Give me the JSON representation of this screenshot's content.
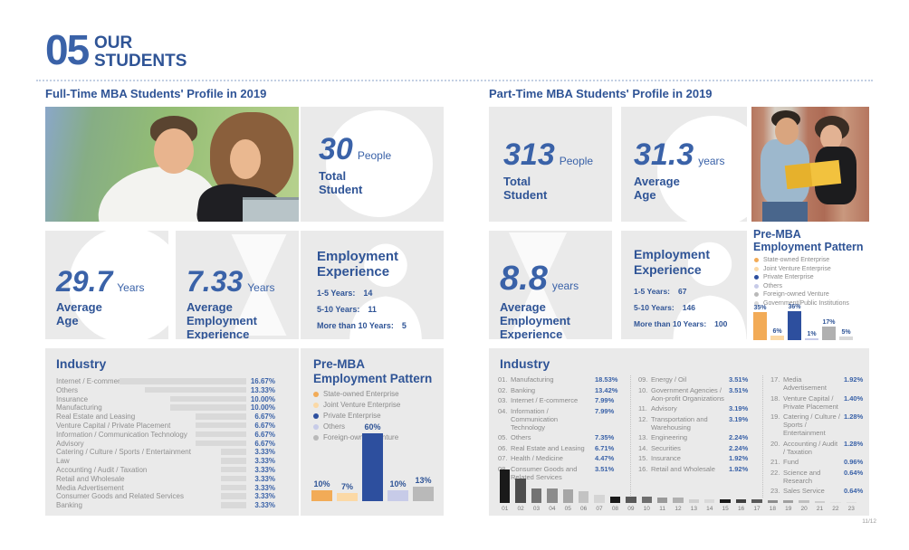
{
  "page": {
    "number": "05",
    "title_top": "OUR",
    "title_bottom": "STUDENTS",
    "page_indicator": "11/12",
    "accent_blue": "#2f5496",
    "number_blue": "#3a62a8",
    "card_gray": "#eaeaea"
  },
  "fulltime": {
    "section_title": "Full-Time MBA Students' Profile in 2019",
    "total_student": {
      "value": "30",
      "unit": "People",
      "label_line1": "Total",
      "label_line2": "Student"
    },
    "average_age": {
      "value": "29.7",
      "unit": "Years",
      "label_line1": "Average",
      "label_line2": "Age"
    },
    "average_employment": {
      "value": "7.33",
      "unit": "Years",
      "label_line1": "Average Employment",
      "label_line2": "Experience"
    },
    "employment_experience": {
      "title_line1": "Employment",
      "title_line2": "Experience",
      "rows": [
        {
          "label": "1-5 Years:",
          "value": "14"
        },
        {
          "label": "5-10 Years:",
          "value": "11"
        },
        {
          "label": "More than 10 Years:",
          "value": "5"
        }
      ]
    },
    "industry": {
      "title": "Industry",
      "items": [
        {
          "label": "Internet / E-commerce",
          "value": 16.67,
          "pct": "16.67%"
        },
        {
          "label": "Others",
          "value": 13.33,
          "pct": "13.33%"
        },
        {
          "label": "Insurance",
          "value": 10.0,
          "pct": "10.00%"
        },
        {
          "label": "Manufacturing",
          "value": 10.0,
          "pct": "10.00%"
        },
        {
          "label": "Real Estate and Leasing",
          "value": 6.67,
          "pct": "6.67%"
        },
        {
          "label": "Venture Capital / Private Placement",
          "value": 6.67,
          "pct": "6.67%"
        },
        {
          "label": "Information / Communication Technology",
          "value": 6.67,
          "pct": "6.67%"
        },
        {
          "label": "Advisory",
          "value": 6.67,
          "pct": "6.67%"
        },
        {
          "label": "Catering / Culture / Sports / Entertainment",
          "value": 3.33,
          "pct": "3.33%"
        },
        {
          "label": "Law",
          "value": 3.33,
          "pct": "3.33%"
        },
        {
          "label": "Accounting / Audit / Taxation",
          "value": 3.33,
          "pct": "3.33%"
        },
        {
          "label": "Retail and Wholesale",
          "value": 3.33,
          "pct": "3.33%"
        },
        {
          "label": "Media Advertisement",
          "value": 3.33,
          "pct": "3.33%"
        },
        {
          "label": "Consumer Goods and Related Services",
          "value": 3.33,
          "pct": "3.33%"
        },
        {
          "label": "Banking",
          "value": 3.33,
          "pct": "3.33%"
        }
      ]
    },
    "pattern": {
      "title_line1": "Pre-MBA",
      "title_line2": "Employment Pattern",
      "legend": [
        {
          "label": "State-owned Enterprise",
          "color": "#f2ab57"
        },
        {
          "label": "Joint Venture Enterprise",
          "color": "#fbd9a6"
        },
        {
          "label": "Private Enterprise",
          "color": "#2d4f9e"
        },
        {
          "label": "Others",
          "color": "#c7cbe8"
        },
        {
          "label": "Foreign-owned Venture",
          "color": "#b9b9b9"
        }
      ],
      "bars": [
        {
          "pct": "10%",
          "value": 10,
          "color": "#f2ab57"
        },
        {
          "pct": "7%",
          "value": 7,
          "color": "#fbd9a6"
        },
        {
          "pct": "60%",
          "value": 60,
          "color": "#2d4f9e"
        },
        {
          "pct": "10%",
          "value": 10,
          "color": "#c7cbe8"
        },
        {
          "pct": "13%",
          "value": 13,
          "color": "#b9b9b9"
        }
      ]
    }
  },
  "parttime": {
    "section_title": "Part-Time MBA Students' Profile in 2019",
    "total_student": {
      "value": "313",
      "unit": "People",
      "label_line1": "Total",
      "label_line2": "Student"
    },
    "average_age": {
      "value": "31.3",
      "unit": "years",
      "label_line1": "Average",
      "label_line2": "Age"
    },
    "average_employment": {
      "value": "8.8",
      "unit": "years",
      "label_line1": "Average Employment",
      "label_line2": "Experience"
    },
    "employment_experience": {
      "title_line1": "Employment",
      "title_line2": "Experience",
      "rows": [
        {
          "label": "1-5 Years:",
          "value": "67"
        },
        {
          "label": "5-10 Years:",
          "value": "146"
        },
        {
          "label": "More than 10 Years:",
          "value": "100"
        }
      ]
    },
    "pattern": {
      "title_line1": "Pre-MBA",
      "title_line2": "Employment Pattern",
      "legend": [
        {
          "label": "State-owned Enterprise",
          "color": "#f2ab57"
        },
        {
          "label": "Joint Venture Enterprise",
          "color": "#fbd9a6"
        },
        {
          "label": "Private Enterprise",
          "color": "#2d4f9e"
        },
        {
          "label": "Others",
          "color": "#c7cbe8"
        },
        {
          "label": "Foreign-owned Venture",
          "color": "#b9b9b9"
        },
        {
          "label": "Government/Public Institutions",
          "color": "#d8d8d8"
        }
      ],
      "bars": [
        {
          "pct": "35%",
          "value": 35,
          "color": "#f2ab57"
        },
        {
          "pct": "6%",
          "value": 6,
          "color": "#fbd9a6"
        },
        {
          "pct": "36%",
          "value": 36,
          "color": "#2d4f9e"
        },
        {
          "pct": "1%",
          "value": 1,
          "color": "#c7cbe8"
        },
        {
          "pct": "17%",
          "value": 17,
          "color": "#b0b0b0"
        },
        {
          "pct": "5%",
          "value": 5,
          "color": "#d8d8d8"
        }
      ]
    },
    "industry": {
      "title": "Industry",
      "columns": [
        [
          {
            "num": "01.",
            "label": "Manufacturing",
            "pct": "18.53%"
          },
          {
            "num": "02.",
            "label": "Banking",
            "pct": "13.42%"
          },
          {
            "num": "03.",
            "label": "Internet / E-commerce",
            "pct": "7.99%"
          },
          {
            "num": "04.",
            "label": "Information / Communication Technology",
            "pct": "7.99%"
          },
          {
            "num": "05.",
            "label": "Others",
            "pct": "7.35%"
          },
          {
            "num": "06.",
            "label": "Real Estate and Leasing",
            "pct": "6.71%"
          },
          {
            "num": "07.",
            "label": "Health / Medicine",
            "pct": "4.47%"
          },
          {
            "num": "08.",
            "label": "Consumer Goods and Related Services",
            "pct": "3.51%"
          }
        ],
        [
          {
            "num": "09.",
            "label": "Energy / Oil",
            "pct": "3.51%"
          },
          {
            "num": "10.",
            "label": "Government Agencies / Aon-profit Organizations",
            "pct": "3.51%"
          },
          {
            "num": "11.",
            "label": "Advisory",
            "pct": "3.19%"
          },
          {
            "num": "12.",
            "label": "Transportation and Warehousing",
            "pct": "3.19%"
          },
          {
            "num": "13.",
            "label": "Engineering",
            "pct": "2.24%"
          },
          {
            "num": "14.",
            "label": "Securities",
            "pct": "2.24%"
          },
          {
            "num": "15.",
            "label": "Insurance",
            "pct": "1.92%"
          },
          {
            "num": "16.",
            "label": "Retail and Wholesale",
            "pct": "1.92%"
          }
        ],
        [
          {
            "num": "17.",
            "label": "Media Advertisement",
            "pct": "1.92%"
          },
          {
            "num": "18.",
            "label": "Venture Capital / Private Placement",
            "pct": "1.40%"
          },
          {
            "num": "19.",
            "label": "Catering / Culture / Sports / Entertainment",
            "pct": "1.28%"
          },
          {
            "num": "20.",
            "label": "Accounting / Audit / Taxation",
            "pct": "1.28%"
          },
          {
            "num": "21.",
            "label": "Fund",
            "pct": "0.96%"
          },
          {
            "num": "22.",
            "label": "Science and Research",
            "pct": "0.64%"
          },
          {
            "num": "23.",
            "label": "Sales Service",
            "pct": "0.64%"
          }
        ]
      ],
      "chart": {
        "labels": [
          "01",
          "02",
          "03",
          "04",
          "05",
          "06",
          "07",
          "08",
          "09",
          "10",
          "11",
          "12",
          "13",
          "14",
          "15",
          "16",
          "17",
          "18",
          "19",
          "20",
          "21",
          "22",
          "23"
        ],
        "values": [
          18.53,
          13.42,
          7.99,
          7.99,
          7.35,
          6.71,
          4.47,
          3.51,
          3.51,
          3.51,
          3.19,
          3.19,
          2.24,
          2.24,
          1.92,
          1.92,
          1.92,
          1.4,
          1.28,
          1.28,
          0.96,
          0.64,
          0.64
        ],
        "colors": [
          "#1a1a1a",
          "#4d4d4d",
          "#737373",
          "#8c8c8c",
          "#a6a6a6",
          "#c3c3c3",
          "#d5d5d5",
          "#1a1a1a",
          "#595959",
          "#6e6e6e",
          "#999999",
          "#b0b0b0",
          "#cfcfcf",
          "#d9d9d9",
          "#1a1a1a",
          "#404040",
          "#595959",
          "#8c8c8c",
          "#a0a0a0",
          "#bfbfbf",
          "#cccccc",
          "#e0e0e0",
          "#dddddd"
        ]
      }
    }
  }
}
